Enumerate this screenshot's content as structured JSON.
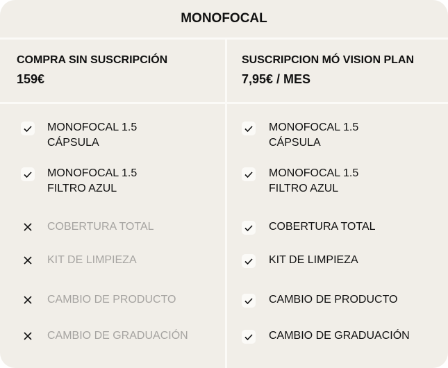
{
  "title": "MONOFOCAL",
  "columns": [
    {
      "title": "COMPRA SIN SUSCRIPCIÓN",
      "price": "159€",
      "features": [
        {
          "lines": [
            "MONOFOCAL 1.5",
            "CÁPSULA"
          ],
          "included": true
        },
        {
          "lines": [
            "MONOFOCAL 1.5",
            "FILTRO AZUL"
          ],
          "included": true
        },
        {
          "lines": [
            "COBERTURA TOTAL"
          ],
          "included": false
        },
        {
          "lines": [
            "KIT DE LIMPIEZA"
          ],
          "included": false
        },
        {
          "lines": [
            "CAMBIO DE PRODUCTO"
          ],
          "included": false
        },
        {
          "lines": [
            "CAMBIO DE GRADUACIÓN"
          ],
          "included": false
        }
      ]
    },
    {
      "title": "SUSCRIPCION MÓ VISION PLAN",
      "price": "7,95€ / MES",
      "features": [
        {
          "lines": [
            "MONOFOCAL 1.5",
            "CÁPSULA"
          ],
          "included": true
        },
        {
          "lines": [
            "MONOFOCAL 1.5",
            "FILTRO AZUL"
          ],
          "included": true
        },
        {
          "lines": [
            "COBERTURA TOTAL"
          ],
          "included": true
        },
        {
          "lines": [
            "KIT DE LIMPIEZA"
          ],
          "included": true
        },
        {
          "lines": [
            "CAMBIO DE PRODUCTO"
          ],
          "included": true
        },
        {
          "lines": [
            "CAMBIO DE GRADUACIÓN"
          ],
          "included": true
        }
      ]
    }
  ]
}
